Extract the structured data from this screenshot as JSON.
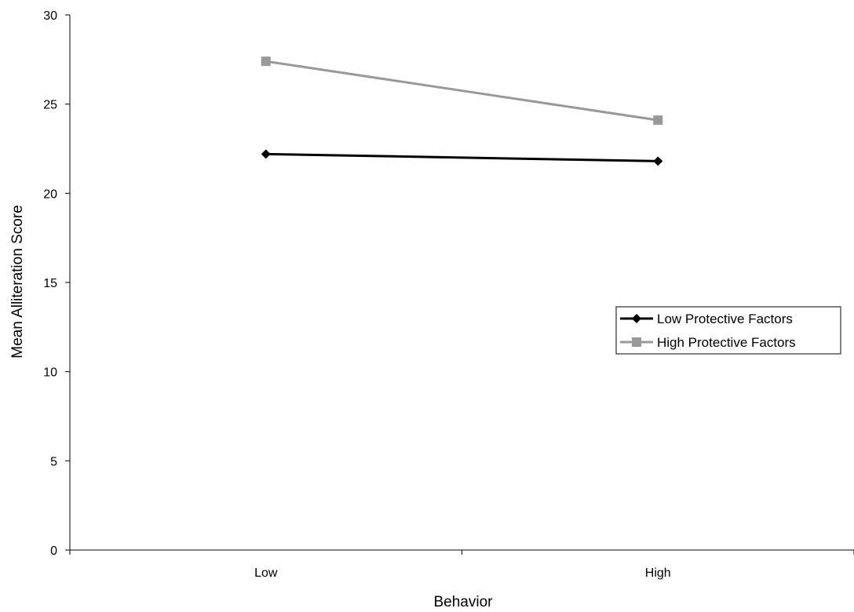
{
  "chart_data": {
    "type": "line",
    "title": "",
    "xlabel": "Behavior",
    "ylabel": "Mean Alliteration Score",
    "categories": [
      "Low",
      "High"
    ],
    "ylim": [
      0,
      30
    ],
    "yticks": [
      0,
      5,
      10,
      15,
      20,
      25,
      30
    ],
    "grid": false,
    "legend_position": "right",
    "series": [
      {
        "name": "Low Protective Factors",
        "values": [
          22.2,
          21.8
        ],
        "color": "#000000",
        "marker": "diamond"
      },
      {
        "name": "High Protective Factors",
        "values": [
          27.4,
          24.1
        ],
        "color": "#999999",
        "marker": "square"
      }
    ]
  }
}
